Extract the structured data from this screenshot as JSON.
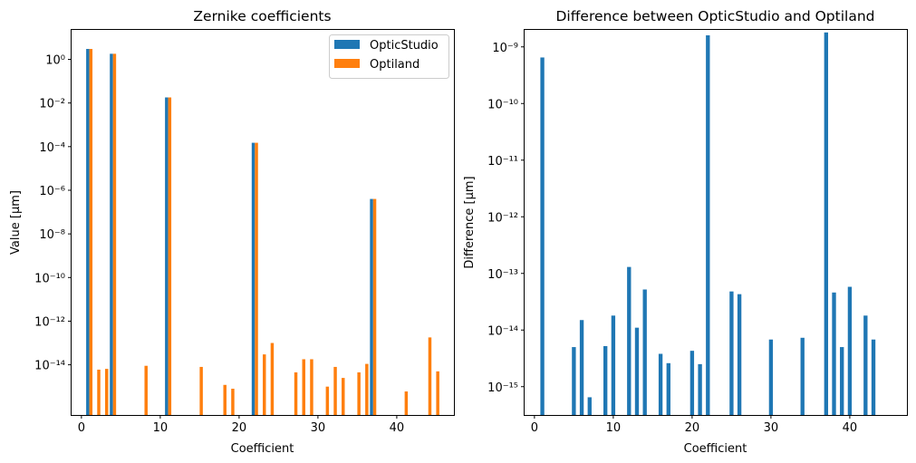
{
  "chart_data": [
    {
      "type": "bar",
      "title": "Zernike coefficients",
      "xlabel": "Coefficient",
      "ylabel": "Value [µm]",
      "yscale": "log",
      "xlim": [
        -1.25,
        47.25
      ],
      "ylim_exp": [
        -16.3,
        1.35
      ],
      "x_ticks": [
        0,
        10,
        20,
        30,
        40
      ],
      "y_tick_exponents": [
        0,
        -2,
        -4,
        -6,
        -8,
        -10,
        -12,
        -14
      ],
      "legend": {
        "placement": "top-right"
      },
      "series": [
        {
          "name": "OpticStudio",
          "color": "#1f77b4",
          "points": [
            {
              "x": 1,
              "y": 3.0
            },
            {
              "x": 4,
              "y": 1.8
            },
            {
              "x": 11,
              "y": 0.018
            },
            {
              "x": 22,
              "y": 0.00015
            },
            {
              "x": 37,
              "y": 4e-07
            }
          ]
        },
        {
          "name": "Optiland",
          "color": "#ff7f0e",
          "points": [
            {
              "x": 1,
              "y": 3.0
            },
            {
              "x": 2,
              "y": 6e-15
            },
            {
              "x": 3,
              "y": 6.5e-15
            },
            {
              "x": 4,
              "y": 1.8
            },
            {
              "x": 8,
              "y": 9e-15
            },
            {
              "x": 11,
              "y": 0.018
            },
            {
              "x": 15,
              "y": 8e-15
            },
            {
              "x": 18,
              "y": 1.2e-15
            },
            {
              "x": 19,
              "y": 8e-16
            },
            {
              "x": 22,
              "y": 0.00015
            },
            {
              "x": 23,
              "y": 3e-14
            },
            {
              "x": 24,
              "y": 1e-13
            },
            {
              "x": 27,
              "y": 4.5e-15
            },
            {
              "x": 28,
              "y": 1.8e-14
            },
            {
              "x": 29,
              "y": 1.8e-14
            },
            {
              "x": 31,
              "y": 1e-15
            },
            {
              "x": 32,
              "y": 8e-15
            },
            {
              "x": 33,
              "y": 2.5e-15
            },
            {
              "x": 35,
              "y": 4.5e-15
            },
            {
              "x": 36,
              "y": 1.1e-14
            },
            {
              "x": 37,
              "y": 4e-07
            },
            {
              "x": 41,
              "y": 6e-16
            },
            {
              "x": 44,
              "y": 1.8e-13
            },
            {
              "x": 45,
              "y": 5e-15
            }
          ]
        }
      ]
    },
    {
      "type": "bar",
      "title": "Difference between OpticStudio and Optiland",
      "xlabel": "Coefficient",
      "ylabel": "Difference [µm]",
      "yscale": "log",
      "xlim": [
        -1.25,
        47.25
      ],
      "ylim_exp": [
        -15.5,
        -8.7
      ],
      "x_ticks": [
        0,
        10,
        20,
        30,
        40
      ],
      "y_tick_exponents": [
        -9,
        -10,
        -11,
        -12,
        -13,
        -14,
        -15
      ],
      "series": [
        {
          "color": "#1f77b4",
          "points": [
            {
              "x": 1,
              "y": 6.5e-10
            },
            {
              "x": 5,
              "y": 5e-15
            },
            {
              "x": 6,
              "y": 1.5e-14
            },
            {
              "x": 7,
              "y": 6.5e-16
            },
            {
              "x": 9,
              "y": 5.2e-15
            },
            {
              "x": 10,
              "y": 1.8e-14
            },
            {
              "x": 12,
              "y": 1.3e-13
            },
            {
              "x": 13,
              "y": 1.1e-14
            },
            {
              "x": 14,
              "y": 5.2e-14
            },
            {
              "x": 16,
              "y": 3.8e-15
            },
            {
              "x": 17,
              "y": 2.6e-15
            },
            {
              "x": 20,
              "y": 4.3e-15
            },
            {
              "x": 21,
              "y": 2.5e-15
            },
            {
              "x": 22,
              "y": 1.6e-09
            },
            {
              "x": 25,
              "y": 4.8e-14
            },
            {
              "x": 26,
              "y": 4.3e-14
            },
            {
              "x": 30,
              "y": 6.8e-15
            },
            {
              "x": 34,
              "y": 7.3e-15
            },
            {
              "x": 37,
              "y": 1.8e-09
            },
            {
              "x": 38,
              "y": 4.6e-14
            },
            {
              "x": 39,
              "y": 5e-15
            },
            {
              "x": 40,
              "y": 5.8e-14
            },
            {
              "x": 42,
              "y": 1.8e-14
            },
            {
              "x": 43,
              "y": 6.8e-15
            }
          ]
        }
      ]
    }
  ]
}
